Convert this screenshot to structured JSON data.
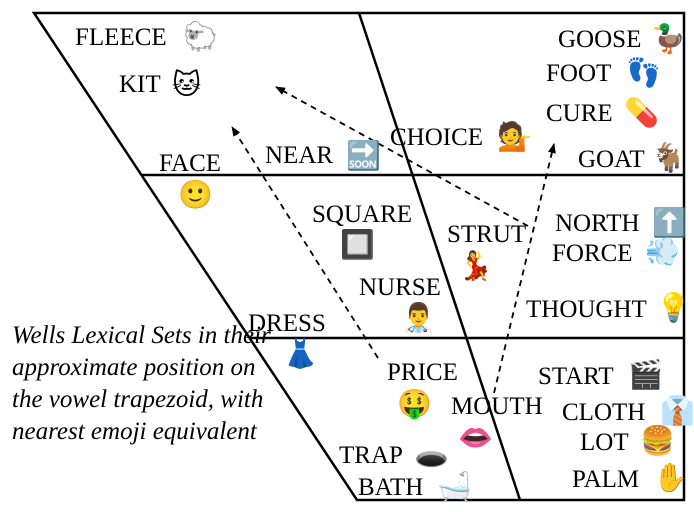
{
  "caption": "Wells Lexical Sets in their approximate position on the vowel trapezoid, with nearest emoji equivalent",
  "labels": {
    "fleece": "FLEECE",
    "kit": "KIT",
    "face": "FACE",
    "near": "NEAR",
    "choice": "CHOICE",
    "goose": "GOOSE",
    "foot": "FOOT",
    "cure": "CURE",
    "goat": "GOAT",
    "square": "SQUARE",
    "strut": "STRUT",
    "nurse": "NURSE",
    "north": "NORTH",
    "force": "FORCE",
    "thought": "THOUGHT",
    "dress": "DRESS",
    "price": "PRICE",
    "mouth": "MOUTH",
    "start": "START",
    "cloth": "CLOTH",
    "lot": "LOT",
    "palm": "PALM",
    "trap": "TRAP",
    "bath": "BATH"
  },
  "emoji": {
    "fleece": "🐑",
    "kit": "🐱",
    "face": "🙂",
    "near": "🔜",
    "choice": "💁",
    "goose": "🦆",
    "foot": "👣",
    "cure": "💊",
    "goat": "🐐",
    "square": "🔲",
    "strut": "💃",
    "nurse": "👨‍⚕️",
    "north": "⬆️",
    "force": "💨",
    "thought": "💡",
    "dress": "👗",
    "price": "🤑",
    "mouth": "👄",
    "start": "🎬",
    "cloth": "👔",
    "lot": "🍔",
    "palm": "✋",
    "trap": "🕳️",
    "bath": "🛁"
  }
}
